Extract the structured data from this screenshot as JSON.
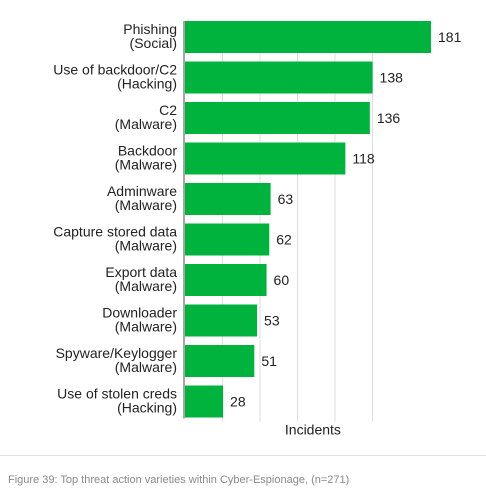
{
  "chart_data": {
    "type": "bar",
    "orientation": "horizontal",
    "categories": [
      [
        "Phishing",
        "(Social)"
      ],
      [
        "Use of backdoor/C2",
        "(Hacking)"
      ],
      [
        "C2",
        "(Malware)"
      ],
      [
        "Backdoor",
        "(Malware)"
      ],
      [
        "Adminware",
        "(Malware)"
      ],
      [
        "Capture stored data",
        "(Malware)"
      ],
      [
        "Export data",
        "(Malware)"
      ],
      [
        "Downloader",
        "(Malware)"
      ],
      [
        "Spyware/Keylogger",
        "(Malware)"
      ],
      [
        "Use of stolen creds",
        "(Hacking)"
      ]
    ],
    "values": [
      181,
      138,
      136,
      118,
      63,
      62,
      60,
      53,
      51,
      28
    ],
    "xlabel": "Incidents",
    "xlim": [
      0,
      181
    ],
    "grid": true,
    "bar_color": "#00b33c",
    "grid_color": "#dddddd",
    "axis_color": "#888888"
  },
  "caption": "Figure 39: Top threat action varieties within Cyber-Espionage, (n=271)"
}
